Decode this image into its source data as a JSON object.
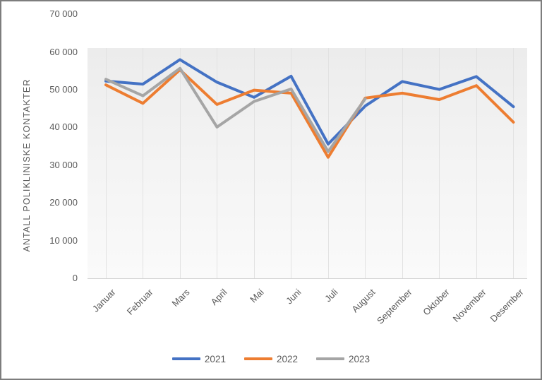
{
  "chart_data": {
    "type": "line",
    "title": "",
    "xlabel": "",
    "ylabel": "ANTALL POLIKLINISKE KONTAKTER",
    "ylim": [
      0,
      70000
    ],
    "grid": "vertical-only",
    "legend_position": "bottom",
    "y_ticks": [
      "70 000",
      "60 000",
      "50 000",
      "40 000",
      "30 000",
      "20 000",
      "10 000",
      "0"
    ],
    "categories": [
      "Januar",
      "Februar",
      "Mars",
      "April",
      "Mai",
      "Juni",
      "Juli",
      "August",
      "September",
      "Oktober",
      "November",
      "Desember"
    ],
    "series": [
      {
        "name": "2021",
        "color": "#4472C4",
        "values": [
          52300,
          51500,
          58000,
          52000,
          48000,
          53600,
          35600,
          45700,
          52200,
          50100,
          53500,
          45500
        ]
      },
      {
        "name": "2022",
        "color": "#ED7D31",
        "values": [
          51300,
          46400,
          55300,
          46100,
          49900,
          49100,
          32100,
          47800,
          49100,
          47400,
          51100,
          41400
        ]
      },
      {
        "name": "2023",
        "color": "#A5A5A5",
        "values": [
          52800,
          48400,
          55700,
          40100,
          46900,
          50200,
          33600,
          47600,
          null,
          null,
          null,
          null
        ]
      }
    ]
  }
}
